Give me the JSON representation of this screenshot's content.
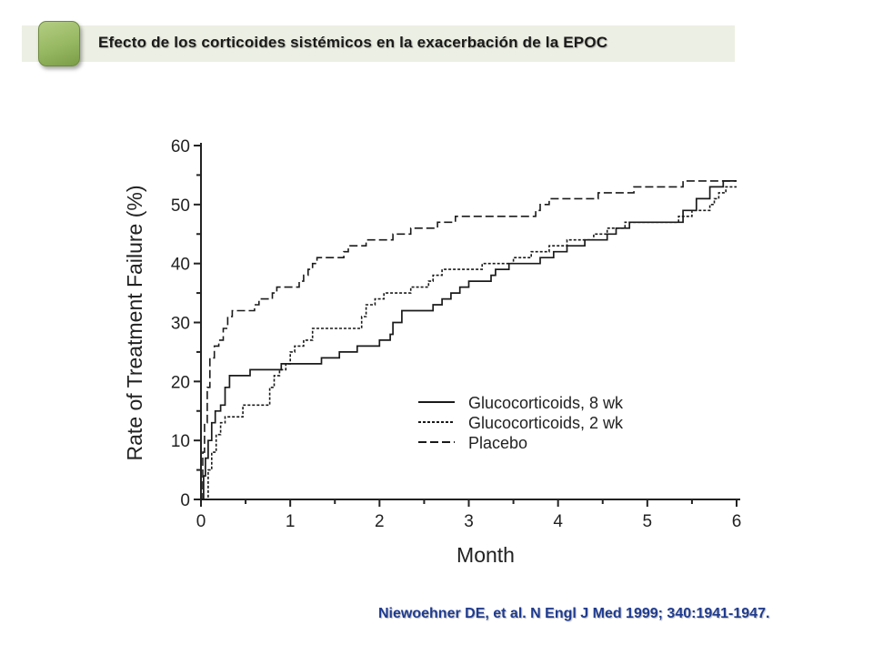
{
  "header": {
    "title": "Efecto de los corticoides sistémicos en la exacerbación de la EPOC",
    "icon": "rounded-square-icon",
    "accent_color": "#97b862"
  },
  "citation": "Niewoehner DE, et al. N Engl J Med 1999; 340:1941-1947.",
  "chart_data": {
    "type": "line",
    "title": "",
    "xlabel": "Month",
    "ylabel": "Rate of Treatment Failure (%)",
    "xlim": [
      0,
      6
    ],
    "ylim": [
      0,
      60
    ],
    "xticks": [
      "0",
      "1",
      "2",
      "3",
      "4",
      "5",
      "6"
    ],
    "yticks": [
      "0",
      "10",
      "20",
      "30",
      "40",
      "50",
      "60"
    ],
    "grid": false,
    "legend_position": "lower-right",
    "series": [
      {
        "name": "Glucocorticoids, 8 wk",
        "style": "solid",
        "points": [
          [
            0.0,
            0
          ],
          [
            0.03,
            4
          ],
          [
            0.05,
            7
          ],
          [
            0.08,
            10
          ],
          [
            0.12,
            13
          ],
          [
            0.16,
            15
          ],
          [
            0.22,
            16
          ],
          [
            0.27,
            19
          ],
          [
            0.32,
            21
          ],
          [
            0.5,
            21
          ],
          [
            0.55,
            22
          ],
          [
            0.85,
            22
          ],
          [
            0.9,
            23
          ],
          [
            1.3,
            23
          ],
          [
            1.35,
            24
          ],
          [
            1.5,
            24
          ],
          [
            1.55,
            25
          ],
          [
            1.7,
            25
          ],
          [
            1.75,
            26
          ],
          [
            1.95,
            26
          ],
          [
            2.0,
            27
          ],
          [
            2.12,
            28
          ],
          [
            2.15,
            30
          ],
          [
            2.25,
            32
          ],
          [
            2.5,
            32
          ],
          [
            2.6,
            33
          ],
          [
            2.7,
            34
          ],
          [
            2.8,
            35
          ],
          [
            2.9,
            36
          ],
          [
            3.0,
            37
          ],
          [
            3.2,
            37
          ],
          [
            3.25,
            38
          ],
          [
            3.3,
            39
          ],
          [
            3.4,
            39
          ],
          [
            3.45,
            40
          ],
          [
            3.75,
            40
          ],
          [
            3.8,
            41
          ],
          [
            3.9,
            41
          ],
          [
            3.95,
            42
          ],
          [
            4.05,
            42
          ],
          [
            4.1,
            43
          ],
          [
            4.25,
            43
          ],
          [
            4.3,
            44
          ],
          [
            4.5,
            44
          ],
          [
            4.55,
            45
          ],
          [
            4.6,
            45
          ],
          [
            4.65,
            46
          ],
          [
            4.75,
            46
          ],
          [
            4.8,
            47
          ],
          [
            5.35,
            47
          ],
          [
            5.4,
            49
          ],
          [
            5.55,
            51
          ],
          [
            5.65,
            51
          ],
          [
            5.7,
            53
          ],
          [
            5.8,
            53
          ],
          [
            5.85,
            54
          ],
          [
            6.0,
            54
          ]
        ]
      },
      {
        "name": "Glucocorticoids, 2 wk",
        "style": "dotted",
        "points": [
          [
            0.0,
            0
          ],
          [
            0.05,
            0
          ],
          [
            0.08,
            5
          ],
          [
            0.12,
            8
          ],
          [
            0.17,
            11
          ],
          [
            0.22,
            13
          ],
          [
            0.27,
            14
          ],
          [
            0.42,
            14
          ],
          [
            0.47,
            16
          ],
          [
            0.72,
            16
          ],
          [
            0.77,
            19
          ],
          [
            0.82,
            21
          ],
          [
            0.88,
            22
          ],
          [
            0.95,
            23
          ],
          [
            1.0,
            25
          ],
          [
            1.05,
            26
          ],
          [
            1.1,
            26
          ],
          [
            1.15,
            27
          ],
          [
            1.25,
            29
          ],
          [
            1.75,
            29
          ],
          [
            1.8,
            31
          ],
          [
            1.85,
            33
          ],
          [
            1.95,
            34
          ],
          [
            2.05,
            35
          ],
          [
            2.3,
            35
          ],
          [
            2.35,
            36
          ],
          [
            2.55,
            37
          ],
          [
            2.6,
            38
          ],
          [
            2.7,
            39
          ],
          [
            3.1,
            39
          ],
          [
            3.15,
            40
          ],
          [
            3.45,
            40
          ],
          [
            3.5,
            41
          ],
          [
            3.65,
            41
          ],
          [
            3.7,
            42
          ],
          [
            3.85,
            42
          ],
          [
            3.9,
            43
          ],
          [
            4.05,
            43
          ],
          [
            4.1,
            44
          ],
          [
            4.35,
            44
          ],
          [
            4.4,
            45
          ],
          [
            4.5,
            45
          ],
          [
            4.55,
            46
          ],
          [
            4.7,
            46
          ],
          [
            4.75,
            47
          ],
          [
            5.3,
            47
          ],
          [
            5.35,
            48
          ],
          [
            5.45,
            48
          ],
          [
            5.5,
            49
          ],
          [
            5.65,
            49
          ],
          [
            5.7,
            50
          ],
          [
            5.75,
            51
          ],
          [
            5.8,
            52
          ],
          [
            5.88,
            53
          ],
          [
            6.0,
            53
          ]
        ]
      },
      {
        "name": "Placebo",
        "style": "dashed",
        "points": [
          [
            0.0,
            0
          ],
          [
            0.02,
            8
          ],
          [
            0.04,
            13
          ],
          [
            0.07,
            19
          ],
          [
            0.1,
            24
          ],
          [
            0.15,
            26
          ],
          [
            0.2,
            27
          ],
          [
            0.25,
            29
          ],
          [
            0.3,
            31
          ],
          [
            0.35,
            32
          ],
          [
            0.55,
            32
          ],
          [
            0.6,
            33
          ],
          [
            0.65,
            34
          ],
          [
            0.75,
            34
          ],
          [
            0.8,
            35
          ],
          [
            0.85,
            36
          ],
          [
            1.05,
            36
          ],
          [
            1.1,
            37
          ],
          [
            1.15,
            38
          ],
          [
            1.2,
            39
          ],
          [
            1.25,
            40
          ],
          [
            1.3,
            41
          ],
          [
            1.55,
            41
          ],
          [
            1.6,
            42
          ],
          [
            1.65,
            43
          ],
          [
            1.8,
            43
          ],
          [
            1.85,
            44
          ],
          [
            2.1,
            44
          ],
          [
            2.15,
            45
          ],
          [
            2.3,
            45
          ],
          [
            2.35,
            46
          ],
          [
            2.6,
            46
          ],
          [
            2.65,
            47
          ],
          [
            2.8,
            47
          ],
          [
            2.85,
            48
          ],
          [
            3.7,
            48
          ],
          [
            3.75,
            49
          ],
          [
            3.8,
            50
          ],
          [
            3.85,
            50
          ],
          [
            3.9,
            51
          ],
          [
            4.4,
            51
          ],
          [
            4.45,
            52
          ],
          [
            4.8,
            52
          ],
          [
            4.85,
            53
          ],
          [
            5.35,
            53
          ],
          [
            5.4,
            54
          ],
          [
            5.95,
            54
          ],
          [
            6.0,
            54
          ]
        ]
      }
    ]
  }
}
